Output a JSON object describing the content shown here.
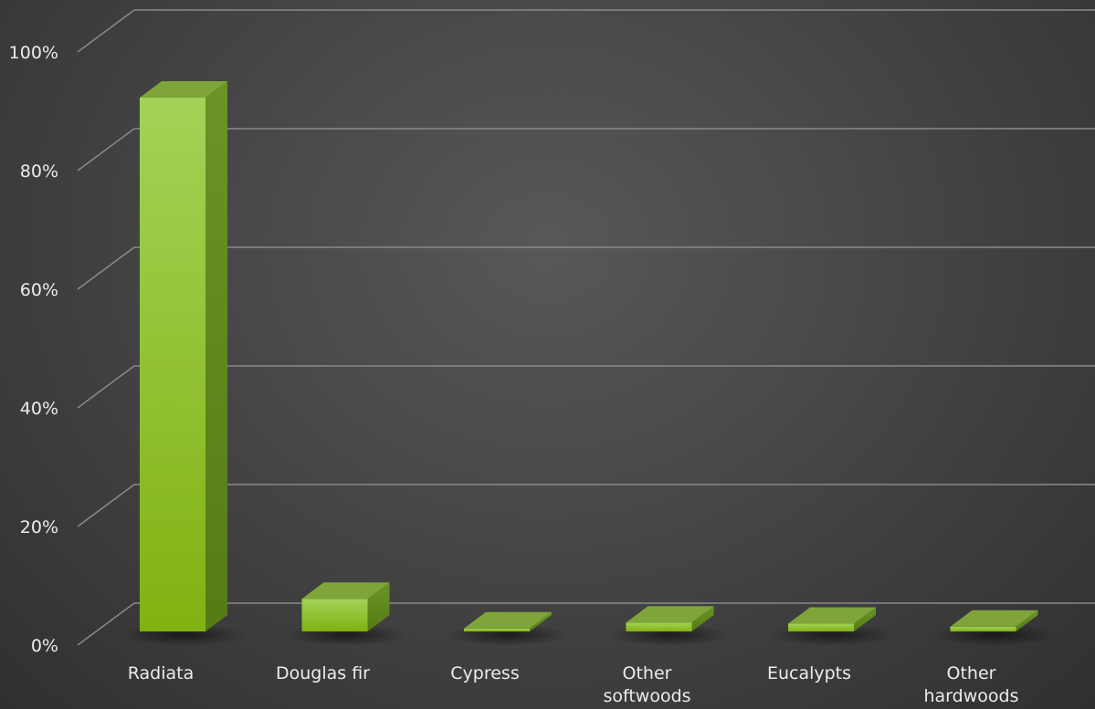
{
  "chart_data": {
    "type": "bar",
    "categories": [
      [
        "Radiata"
      ],
      [
        "Douglas fir"
      ],
      [
        "Cypress"
      ],
      [
        "Other",
        "softwoods"
      ],
      [
        "Eucalypts"
      ],
      [
        "Other",
        "hardwoods"
      ]
    ],
    "values": [
      90,
      5.5,
      0.5,
      1.5,
      1.3,
      0.8
    ],
    "yticks": [
      "0%",
      "20%",
      "40%",
      "60%",
      "80%",
      "100%"
    ],
    "ylim": [
      0,
      100
    ],
    "grid": true,
    "colors": {
      "front_top": "#9fd24a",
      "front_bottom": "#82b314",
      "side": "#5f8a18",
      "top": "#7fa43a"
    }
  }
}
